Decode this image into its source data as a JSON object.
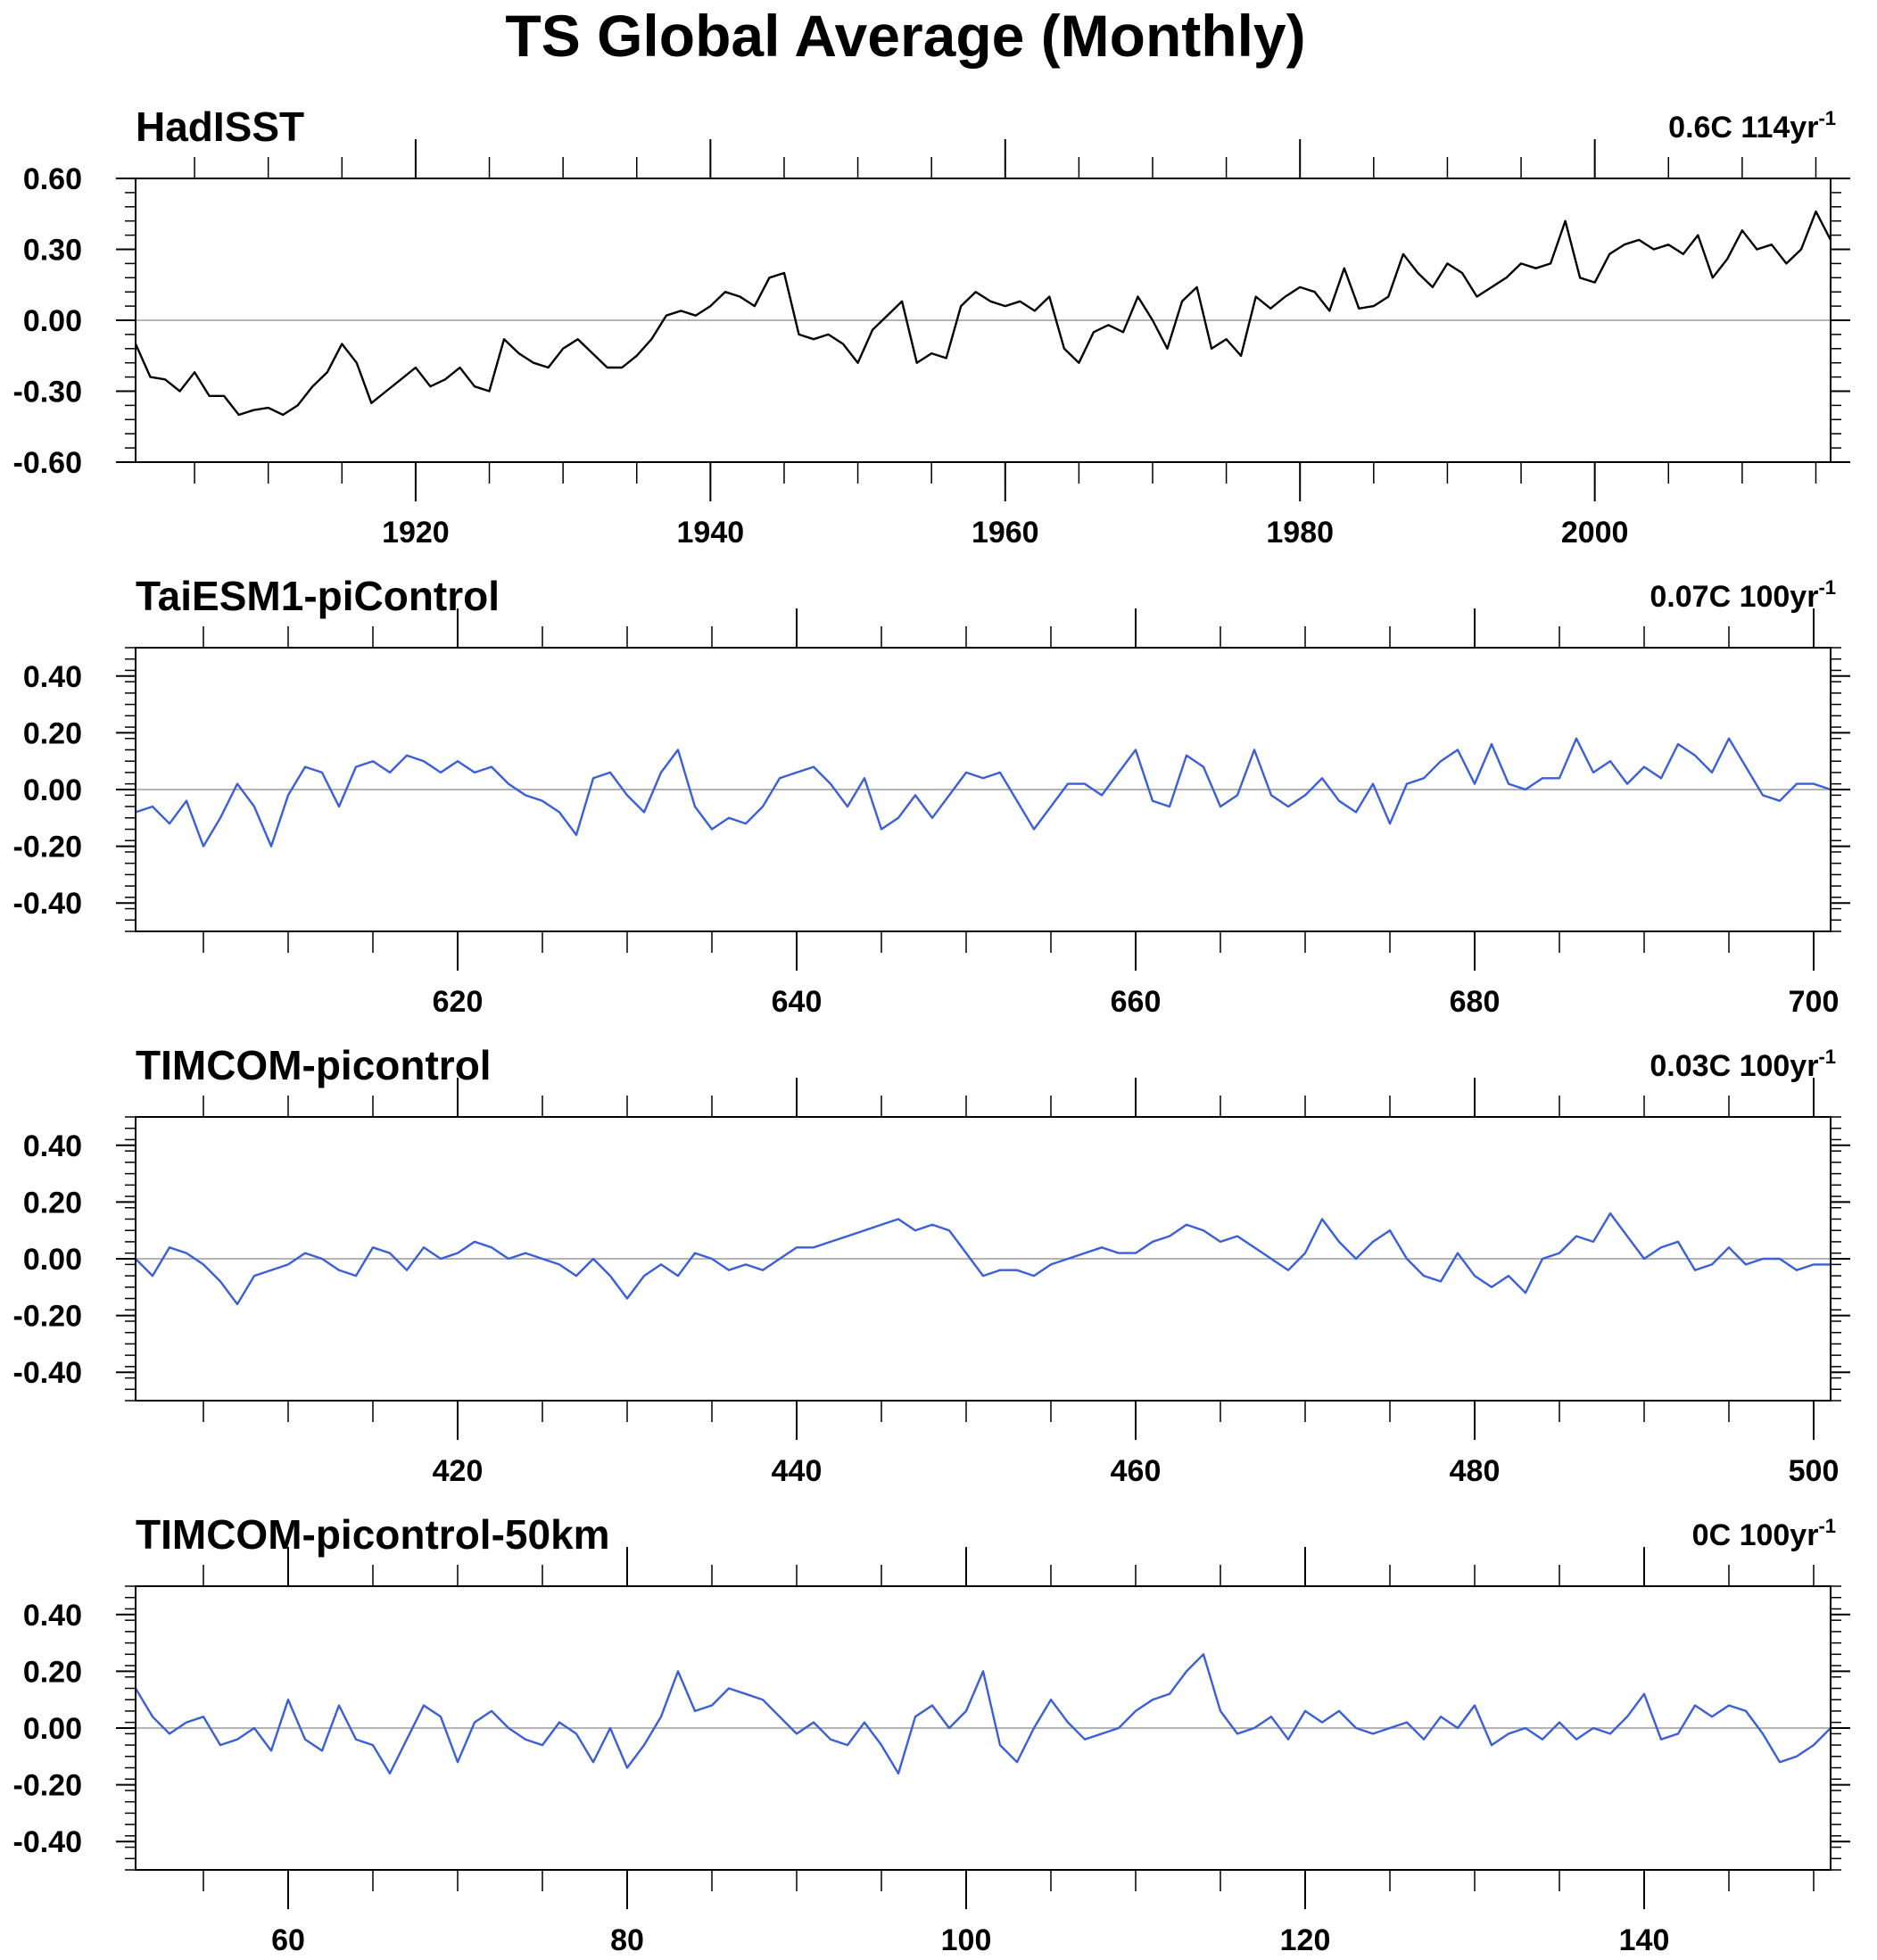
{
  "figure_title": "TS Global Average (Monthly)",
  "chart_data": [
    {
      "type": "line",
      "title": "HadISST",
      "trend_label": "0.6C 114yr",
      "trend_superscript": "-1",
      "line_color": "#000000",
      "xlim": [
        1901,
        2016
      ],
      "x_ticks": [
        1920,
        1940,
        1960,
        1980,
        2000
      ],
      "ylim": [
        -0.6,
        0.6
      ],
      "y_ticks": [
        0.6,
        0.3,
        0.0,
        -0.3,
        -0.6
      ],
      "y_tick_labels": [
        "0.60",
        "0.30",
        "0.00",
        "-0.30",
        "-0.60"
      ],
      "series": [
        {
          "x": [
            1901,
            1902,
            1903,
            1904,
            1905,
            1906,
            1907,
            1908,
            1909,
            1910,
            1911,
            1912,
            1913,
            1914,
            1915,
            1916,
            1917,
            1918,
            1919,
            1920,
            1921,
            1922,
            1923,
            1924,
            1925,
            1926,
            1927,
            1928,
            1929,
            1930,
            1931,
            1932,
            1933,
            1934,
            1935,
            1936,
            1937,
            1938,
            1939,
            1940,
            1941,
            1942,
            1943,
            1944,
            1945,
            1946,
            1947,
            1948,
            1949,
            1950,
            1951,
            1952,
            1953,
            1954,
            1955,
            1956,
            1957,
            1958,
            1959,
            1960,
            1961,
            1962,
            1963,
            1964,
            1965,
            1966,
            1967,
            1968,
            1969,
            1970,
            1971,
            1972,
            1973,
            1974,
            1975,
            1976,
            1977,
            1978,
            1979,
            1980,
            1981,
            1982,
            1983,
            1984,
            1985,
            1986,
            1987,
            1988,
            1989,
            1990,
            1991,
            1992,
            1993,
            1994,
            1995,
            1996,
            1997,
            1998,
            1999,
            2000,
            2001,
            2002,
            2003,
            2004,
            2005,
            2006,
            2007,
            2008,
            2009,
            2010,
            2011,
            2012,
            2013,
            2014,
            2015,
            2016
          ],
          "values": [
            -0.1,
            -0.24,
            -0.25,
            -0.3,
            -0.22,
            -0.32,
            -0.32,
            -0.4,
            -0.38,
            -0.37,
            -0.4,
            -0.36,
            -0.28,
            -0.22,
            -0.1,
            -0.18,
            -0.35,
            -0.3,
            -0.25,
            -0.2,
            -0.28,
            -0.25,
            -0.2,
            -0.28,
            -0.3,
            -0.08,
            -0.14,
            -0.18,
            -0.2,
            -0.12,
            -0.08,
            -0.14,
            -0.2,
            -0.2,
            -0.15,
            -0.08,
            0.02,
            0.04,
            0.02,
            0.06,
            0.12,
            0.1,
            0.06,
            0.18,
            0.2,
            -0.06,
            -0.08,
            -0.06,
            -0.1,
            -0.18,
            -0.04,
            0.02,
            0.08,
            -0.18,
            -0.14,
            -0.16,
            0.06,
            0.12,
            0.08,
            0.06,
            0.08,
            0.04,
            0.1,
            -0.12,
            -0.18,
            -0.05,
            -0.02,
            -0.05,
            0.1,
            0.0,
            -0.12,
            0.08,
            0.14,
            -0.12,
            -0.08,
            -0.15,
            0.1,
            0.05,
            0.1,
            0.14,
            0.12,
            0.04,
            0.22,
            0.05,
            0.06,
            0.1,
            0.28,
            0.2,
            0.14,
            0.24,
            0.2,
            0.1,
            0.14,
            0.18,
            0.24,
            0.22,
            0.24,
            0.42,
            0.18,
            0.16,
            0.28,
            0.32,
            0.34,
            0.3,
            0.32,
            0.28,
            0.36,
            0.18,
            0.26,
            0.38,
            0.3,
            0.32,
            0.24,
            0.3,
            0.46,
            0.34
          ]
        }
      ]
    },
    {
      "type": "line",
      "title": "TaiESM1-piControl",
      "trend_label": "0.07C 100yr",
      "trend_superscript": "-1",
      "line_color": "#3b5fd6",
      "xlim": [
        601,
        701
      ],
      "x_ticks": [
        620,
        640,
        660,
        680,
        700
      ],
      "ylim": [
        -0.5,
        0.5
      ],
      "y_ticks": [
        0.4,
        0.2,
        0.0,
        -0.2,
        -0.4
      ],
      "y_tick_labels": [
        "0.40",
        "0.20",
        "0.00",
        "-0.20",
        "-0.40"
      ],
      "series": [
        {
          "x": [
            601,
            602,
            603,
            604,
            605,
            606,
            607,
            608,
            609,
            610,
            611,
            612,
            613,
            614,
            615,
            616,
            617,
            618,
            619,
            620,
            621,
            622,
            623,
            624,
            625,
            626,
            627,
            628,
            629,
            630,
            631,
            632,
            633,
            634,
            635,
            636,
            637,
            638,
            639,
            640,
            641,
            642,
            643,
            644,
            645,
            646,
            647,
            648,
            649,
            650,
            651,
            652,
            653,
            654,
            655,
            656,
            657,
            658,
            659,
            660,
            661,
            662,
            663,
            664,
            665,
            666,
            667,
            668,
            669,
            670,
            671,
            672,
            673,
            674,
            675,
            676,
            677,
            678,
            679,
            680,
            681,
            682,
            683,
            684,
            685,
            686,
            687,
            688,
            689,
            690,
            691,
            692,
            693,
            694,
            695,
            696,
            697,
            698,
            699,
            700,
            701
          ],
          "values": [
            -0.08,
            -0.06,
            -0.12,
            -0.04,
            -0.2,
            -0.1,
            0.02,
            -0.06,
            -0.2,
            -0.02,
            0.08,
            0.06,
            -0.06,
            0.08,
            0.1,
            0.06,
            0.12,
            0.1,
            0.06,
            0.1,
            0.06,
            0.08,
            0.02,
            -0.02,
            -0.04,
            -0.08,
            -0.16,
            0.04,
            0.06,
            -0.02,
            -0.08,
            0.06,
            0.14,
            -0.06,
            -0.14,
            -0.1,
            -0.12,
            -0.06,
            0.04,
            0.06,
            0.08,
            0.02,
            -0.06,
            0.04,
            -0.14,
            -0.1,
            -0.02,
            -0.1,
            -0.02,
            0.06,
            0.04,
            0.06,
            -0.04,
            -0.14,
            -0.06,
            0.02,
            0.02,
            -0.02,
            0.06,
            0.14,
            -0.04,
            -0.06,
            0.12,
            0.08,
            -0.06,
            -0.02,
            0.14,
            -0.02,
            -0.06,
            -0.02,
            0.04,
            -0.04,
            -0.08,
            0.02,
            -0.12,
            0.02,
            0.04,
            0.1,
            0.14,
            0.02,
            0.16,
            0.02,
            0.0,
            0.04,
            0.04,
            0.18,
            0.06,
            0.1,
            0.02,
            0.08,
            0.04,
            0.16,
            0.12,
            0.06,
            0.18,
            0.08,
            -0.02,
            -0.04,
            0.02,
            0.02,
            0.0
          ]
        }
      ]
    },
    {
      "type": "line",
      "title": "TIMCOM-picontrol",
      "trend_label": "0.03C 100yr",
      "trend_superscript": "-1",
      "line_color": "#3b5fd6",
      "xlim": [
        401,
        501
      ],
      "x_ticks": [
        420,
        440,
        460,
        480,
        500
      ],
      "ylim": [
        -0.5,
        0.5
      ],
      "y_ticks": [
        0.4,
        0.2,
        0.0,
        -0.2,
        -0.4
      ],
      "y_tick_labels": [
        "0.40",
        "0.20",
        "0.00",
        "-0.20",
        "-0.40"
      ],
      "series": [
        {
          "x": [
            401,
            402,
            403,
            404,
            405,
            406,
            407,
            408,
            409,
            410,
            411,
            412,
            413,
            414,
            415,
            416,
            417,
            418,
            419,
            420,
            421,
            422,
            423,
            424,
            425,
            426,
            427,
            428,
            429,
            430,
            431,
            432,
            433,
            434,
            435,
            436,
            437,
            438,
            439,
            440,
            441,
            442,
            443,
            444,
            445,
            446,
            447,
            448,
            449,
            450,
            451,
            452,
            453,
            454,
            455,
            456,
            457,
            458,
            459,
            460,
            461,
            462,
            463,
            464,
            465,
            466,
            467,
            468,
            469,
            470,
            471,
            472,
            473,
            474,
            475,
            476,
            477,
            478,
            479,
            480,
            481,
            482,
            483,
            484,
            485,
            486,
            487,
            488,
            489,
            490,
            491,
            492,
            493,
            494,
            495,
            496,
            497,
            498,
            499,
            500,
            501
          ],
          "values": [
            0.0,
            -0.06,
            0.04,
            0.02,
            -0.02,
            -0.08,
            -0.16,
            -0.06,
            -0.04,
            -0.02,
            0.02,
            0.0,
            -0.04,
            -0.06,
            0.04,
            0.02,
            -0.04,
            0.04,
            0.0,
            0.02,
            0.06,
            0.04,
            0.0,
            0.02,
            0.0,
            -0.02,
            -0.06,
            0.0,
            -0.06,
            -0.14,
            -0.06,
            -0.02,
            -0.06,
            0.02,
            0.0,
            -0.04,
            -0.02,
            -0.04,
            0.0,
            0.04,
            0.04,
            0.06,
            0.08,
            0.1,
            0.12,
            0.14,
            0.1,
            0.12,
            0.1,
            0.02,
            -0.06,
            -0.04,
            -0.04,
            -0.06,
            -0.02,
            0.0,
            0.02,
            0.04,
            0.02,
            0.02,
            0.06,
            0.08,
            0.12,
            0.1,
            0.06,
            0.08,
            0.04,
            0.0,
            -0.04,
            0.02,
            0.14,
            0.06,
            0.0,
            0.06,
            0.1,
            0.0,
            -0.06,
            -0.08,
            0.02,
            -0.06,
            -0.1,
            -0.06,
            -0.12,
            0.0,
            0.02,
            0.08,
            0.06,
            0.16,
            0.08,
            0.0,
            0.04,
            0.06,
            -0.04,
            -0.02,
            0.04,
            -0.02,
            0.0,
            0.0,
            -0.04,
            -0.02,
            -0.02
          ]
        }
      ]
    },
    {
      "type": "line",
      "title": "TIMCOM-picontrol-50km",
      "trend_label": "0C 100yr",
      "trend_superscript": "-1",
      "line_color": "#3b5fd6",
      "xlim": [
        51,
        151
      ],
      "x_ticks": [
        60,
        80,
        100,
        120,
        140
      ],
      "ylim": [
        -0.5,
        0.5
      ],
      "y_ticks": [
        0.4,
        0.2,
        0.0,
        -0.2,
        -0.4
      ],
      "y_tick_labels": [
        "0.40",
        "0.20",
        "0.00",
        "-0.20",
        "-0.40"
      ],
      "series": [
        {
          "x": [
            51,
            52,
            53,
            54,
            55,
            56,
            57,
            58,
            59,
            60,
            61,
            62,
            63,
            64,
            65,
            66,
            67,
            68,
            69,
            70,
            71,
            72,
            73,
            74,
            75,
            76,
            77,
            78,
            79,
            80,
            81,
            82,
            83,
            84,
            85,
            86,
            87,
            88,
            89,
            90,
            91,
            92,
            93,
            94,
            95,
            96,
            97,
            98,
            99,
            100,
            101,
            102,
            103,
            104,
            105,
            106,
            107,
            108,
            109,
            110,
            111,
            112,
            113,
            114,
            115,
            116,
            117,
            118,
            119,
            120,
            121,
            122,
            123,
            124,
            125,
            126,
            127,
            128,
            129,
            130,
            131,
            132,
            133,
            134,
            135,
            136,
            137,
            138,
            139,
            140,
            141,
            142,
            143,
            144,
            145,
            146,
            147,
            148,
            149,
            150,
            151
          ],
          "values": [
            0.14,
            0.04,
            -0.02,
            0.02,
            0.04,
            -0.06,
            -0.04,
            0.0,
            -0.08,
            0.1,
            -0.04,
            -0.08,
            0.08,
            -0.04,
            -0.06,
            -0.16,
            -0.04,
            0.08,
            0.04,
            -0.12,
            0.02,
            0.06,
            0.0,
            -0.04,
            -0.06,
            0.02,
            -0.02,
            -0.12,
            0.0,
            -0.14,
            -0.06,
            0.04,
            0.2,
            0.06,
            0.08,
            0.14,
            0.12,
            0.1,
            0.04,
            -0.02,
            0.02,
            -0.04,
            -0.06,
            0.02,
            -0.06,
            -0.16,
            0.04,
            0.08,
            0.0,
            0.06,
            0.2,
            -0.06,
            -0.12,
            0.0,
            0.1,
            0.02,
            -0.04,
            -0.02,
            0.0,
            0.06,
            0.1,
            0.12,
            0.2,
            0.26,
            0.06,
            -0.02,
            0.0,
            0.04,
            -0.04,
            0.06,
            0.02,
            0.06,
            0.0,
            -0.02,
            0.0,
            0.02,
            -0.04,
            0.04,
            0.0,
            0.08,
            -0.06,
            -0.02,
            0.0,
            -0.04,
            0.02,
            -0.04,
            0.0,
            -0.02,
            0.04,
            0.12,
            -0.04,
            -0.02,
            0.08,
            0.04,
            0.08,
            0.06,
            -0.02,
            -0.12,
            -0.1,
            -0.06,
            0.0
          ]
        }
      ]
    }
  ]
}
